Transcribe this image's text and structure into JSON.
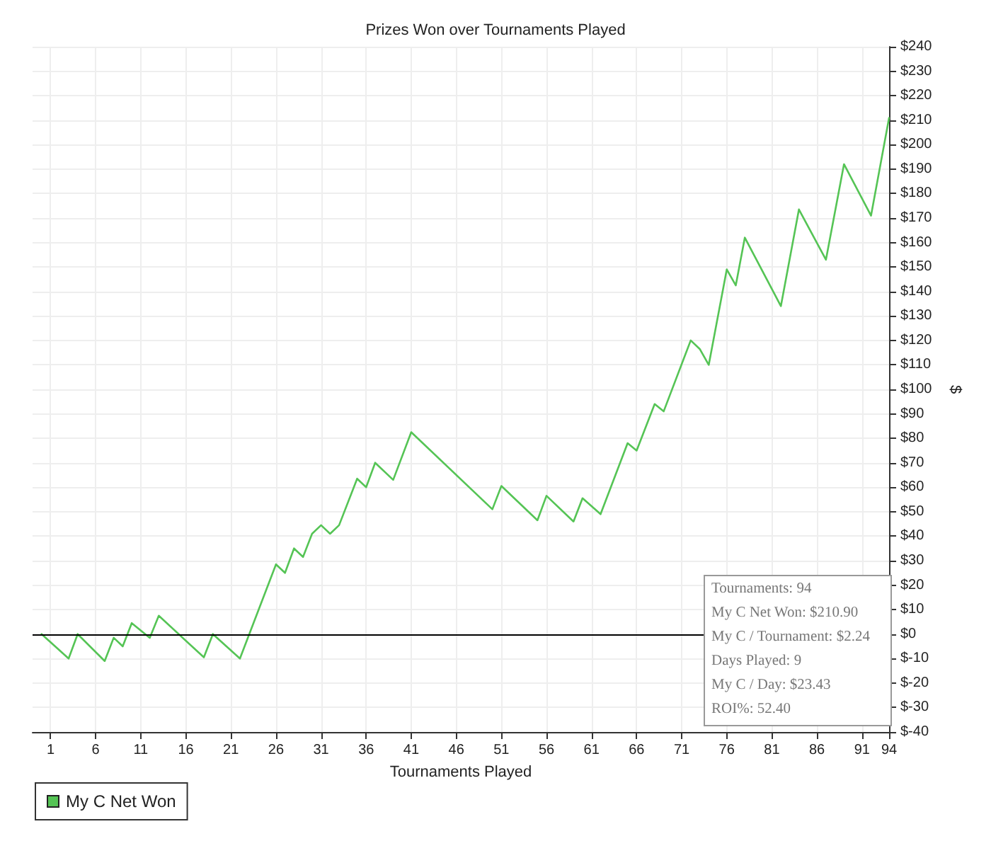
{
  "chart_data": {
    "type": "line",
    "title": "Prizes Won over Tournaments Played",
    "xlabel": "Tournaments Played",
    "ylabel": "$",
    "x": [
      0,
      3,
      4,
      7,
      8,
      9,
      10,
      12,
      13,
      18,
      19,
      22,
      26,
      27,
      28,
      29,
      30,
      31,
      32,
      33,
      35,
      36,
      37,
      39,
      41,
      50,
      51,
      55,
      56,
      59,
      60,
      62,
      65,
      66,
      68,
      69,
      72,
      73,
      74,
      76,
      77,
      78,
      82,
      84,
      87,
      89,
      92,
      94
    ],
    "series": [
      {
        "name": "My C Net Won",
        "color": "#55c455",
        "values": [
          0,
          -10,
          0,
          -11,
          -1.5,
          -5,
          4.5,
          -1.5,
          7.5,
          -9.5,
          0,
          -10,
          28.5,
          25,
          35,
          31.5,
          41,
          44.5,
          41,
          44.5,
          63.5,
          60,
          70,
          63,
          82.5,
          51,
          60.5,
          46.5,
          56.5,
          46,
          55.5,
          49,
          78,
          75,
          94,
          91,
          120,
          116.5,
          110,
          149,
          142.5,
          162,
          134,
          173.5,
          153,
          192,
          171,
          210.9
        ]
      }
    ],
    "xlim": [
      -1,
      94
    ],
    "xticks": [
      1,
      6,
      11,
      16,
      21,
      26,
      31,
      36,
      41,
      46,
      51,
      56,
      61,
      66,
      71,
      76,
      81,
      86,
      91,
      94
    ],
    "ylim": [
      -40,
      240
    ],
    "yticks": [
      {
        "value": -40,
        "label": "$-40"
      },
      {
        "value": -30,
        "label": "$-30"
      },
      {
        "value": -20,
        "label": "$-20"
      },
      {
        "value": -10,
        "label": "$-10"
      },
      {
        "value": 0,
        "label": "$0"
      },
      {
        "value": 10,
        "label": "$10"
      },
      {
        "value": 20,
        "label": "$20"
      },
      {
        "value": 30,
        "label": "$30"
      },
      {
        "value": 40,
        "label": "$40"
      },
      {
        "value": 50,
        "label": "$50"
      },
      {
        "value": 60,
        "label": "$60"
      },
      {
        "value": 70,
        "label": "$70"
      },
      {
        "value": 80,
        "label": "$80"
      },
      {
        "value": 90,
        "label": "$90"
      },
      {
        "value": 100,
        "label": "$100"
      },
      {
        "value": 110,
        "label": "$110"
      },
      {
        "value": 120,
        "label": "$120"
      },
      {
        "value": 130,
        "label": "$130"
      },
      {
        "value": 140,
        "label": "$140"
      },
      {
        "value": 150,
        "label": "$150"
      },
      {
        "value": 160,
        "label": "$160"
      },
      {
        "value": 170,
        "label": "$170"
      },
      {
        "value": 180,
        "label": "$180"
      },
      {
        "value": 190,
        "label": "$190"
      },
      {
        "value": 200,
        "label": "$200"
      },
      {
        "value": 210,
        "label": "$210"
      },
      {
        "value": 220,
        "label": "$220"
      },
      {
        "value": 230,
        "label": "$230"
      },
      {
        "value": 240,
        "label": "$240"
      }
    ],
    "ref_lines": [
      {
        "axis": "y",
        "value": 0,
        "color": "#000000"
      }
    ],
    "annotations": [
      "Tournaments: 94",
      "My C Net Won: $210.90",
      "My C / Tournament: $2.24",
      "Days Played: 9",
      "My C / Day: $23.43",
      "ROI%: 52.40"
    ],
    "grid": true,
    "legend": "bottom left",
    "marker": "none",
    "line_style": "solid"
  }
}
